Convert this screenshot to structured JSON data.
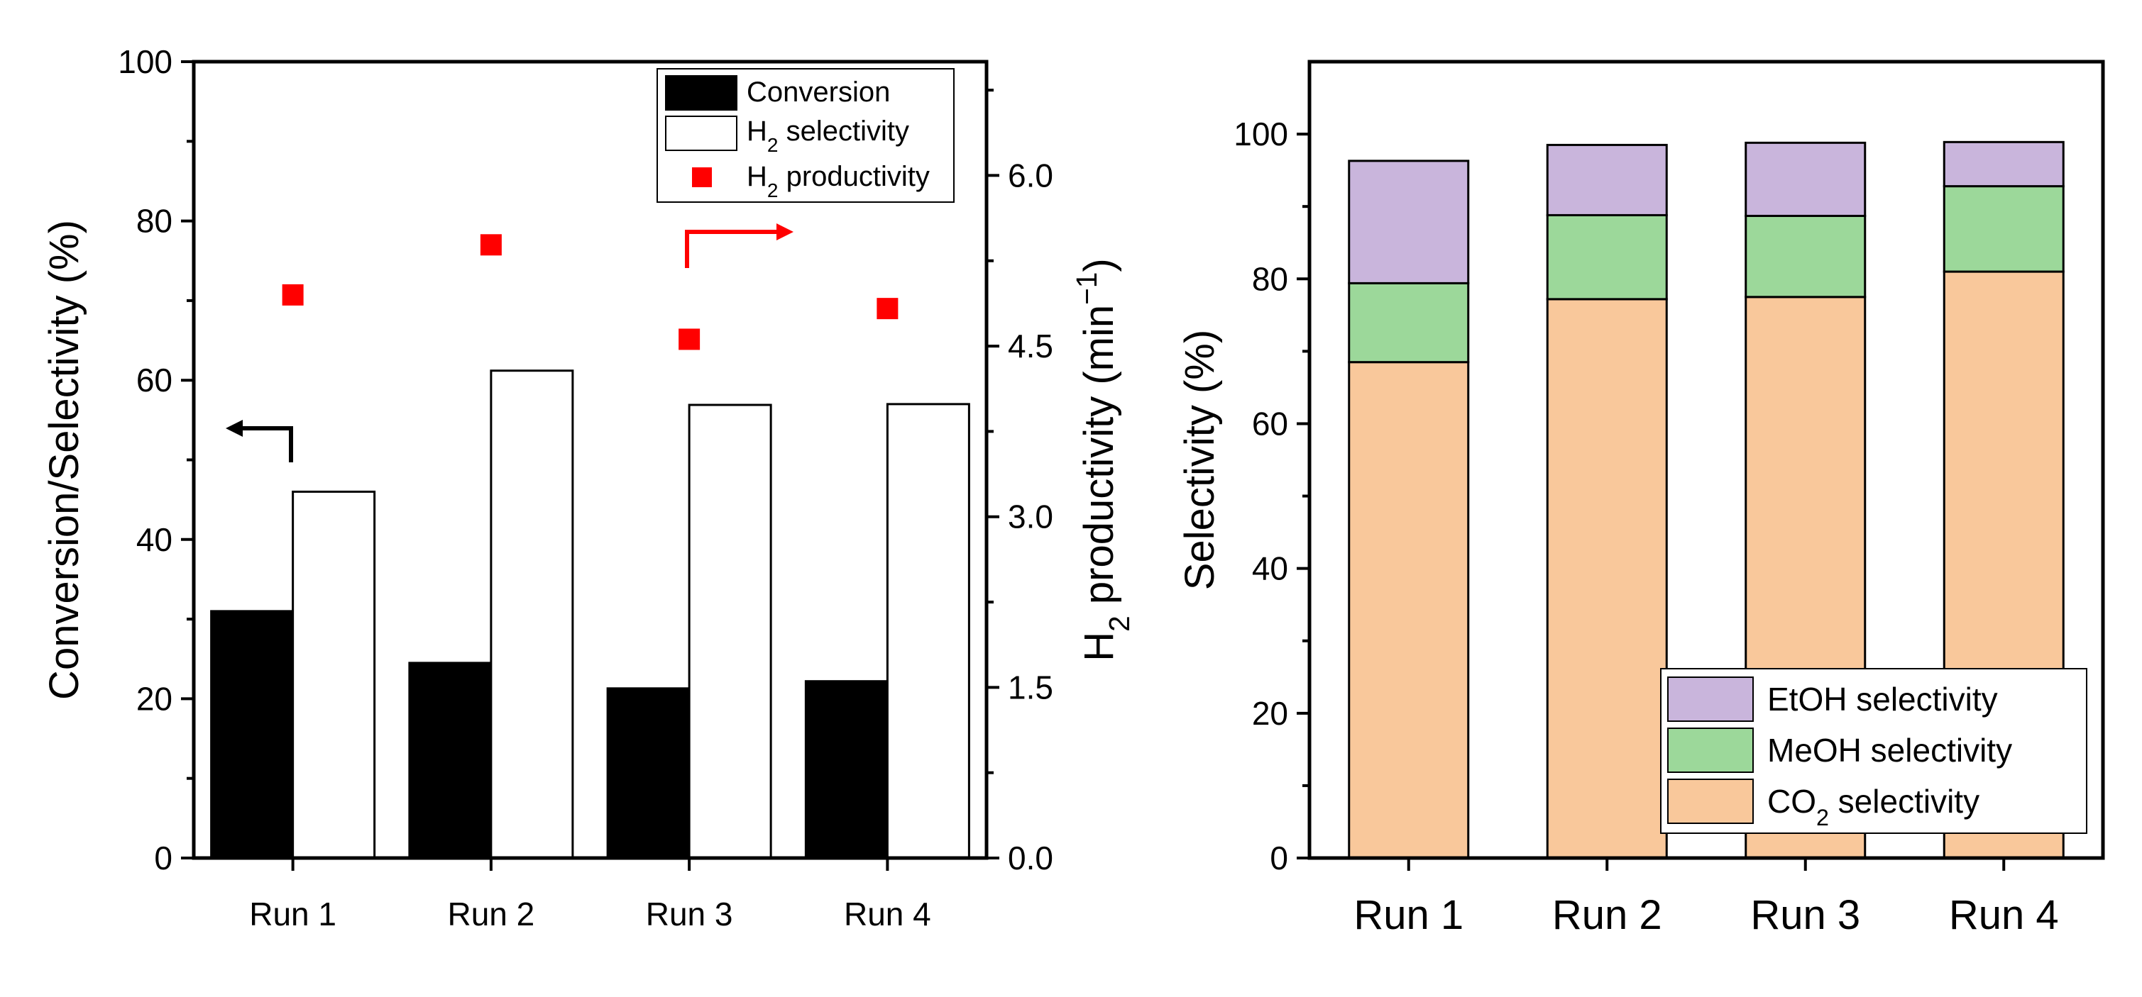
{
  "chart_data": [
    {
      "type": "bar",
      "title": "",
      "categories": [
        "Run 1",
        "Run 2",
        "Run 3",
        "Run 4"
      ],
      "ylabel": "Conversion/Selectivity (%)",
      "ylim": [
        0,
        100
      ],
      "yticks": [
        "0",
        "20",
        "40",
        "60",
        "80",
        "100"
      ],
      "y2label": "H2 productivity (min−1)",
      "y2label_parts": {
        "h": "H",
        "sub": "2",
        "main": " productivity (min",
        "sup": "−1",
        "close": ")"
      },
      "y2lim": [
        0,
        7.0
      ],
      "y2ticks": [
        "0.0",
        "1.5",
        "3.0",
        "4.5",
        "6.0"
      ],
      "series": [
        {
          "name": "Conversion",
          "axis": "left",
          "kind": "bar",
          "color": "#000000",
          "values": [
            31.0,
            24.5,
            21.3,
            22.2
          ]
        },
        {
          "name": "H2 selectivity",
          "label_parts": {
            "main": "H",
            "sub": "2",
            "rest": " selectivity"
          },
          "axis": "left",
          "kind": "bar",
          "color": "#ffffff",
          "values": [
            46.0,
            61.2,
            56.9,
            57.0
          ]
        },
        {
          "name": "H2 productivity",
          "label_parts": {
            "main": "H",
            "sub": "2",
            "rest": " productivity"
          },
          "axis": "right",
          "kind": "scatter",
          "color": "#ff0000",
          "values": [
            4.95,
            5.39,
            4.56,
            4.83
          ]
        }
      ],
      "legend_position": "top-right",
      "annotations": [
        "left arrow points to left axis",
        "right arrow points to right axis"
      ]
    },
    {
      "type": "bar",
      "stacked": true,
      "title": "",
      "categories": [
        "Run 1",
        "Run 2",
        "Run 3",
        "Run 4"
      ],
      "ylabel": "Selectivity (%)",
      "ylim": [
        0,
        110
      ],
      "yticks": [
        "0",
        "20",
        "40",
        "60",
        "80",
        "100"
      ],
      "series": [
        {
          "name": "CO2 selectivity",
          "label_parts": {
            "main": "CO",
            "sub": "2",
            "rest": " selectivity"
          },
          "color": "#f9c89b",
          "values": [
            68.5,
            77.2,
            77.5,
            81.0
          ]
        },
        {
          "name": "MeOH selectivity",
          "label_parts": {
            "main": "MeOH selectivity",
            "sub": "",
            "rest": ""
          },
          "color": "#9cd89a",
          "values": [
            10.9,
            11.6,
            11.2,
            11.8
          ]
        },
        {
          "name": "EtOH selectivity",
          "label_parts": {
            "main": "EtOH selectivity",
            "sub": "",
            "rest": ""
          },
          "color": "#c9b5dc",
          "values": [
            16.9,
            9.7,
            10.1,
            6.1
          ]
        }
      ],
      "legend_position": "bottom-right"
    }
  ]
}
